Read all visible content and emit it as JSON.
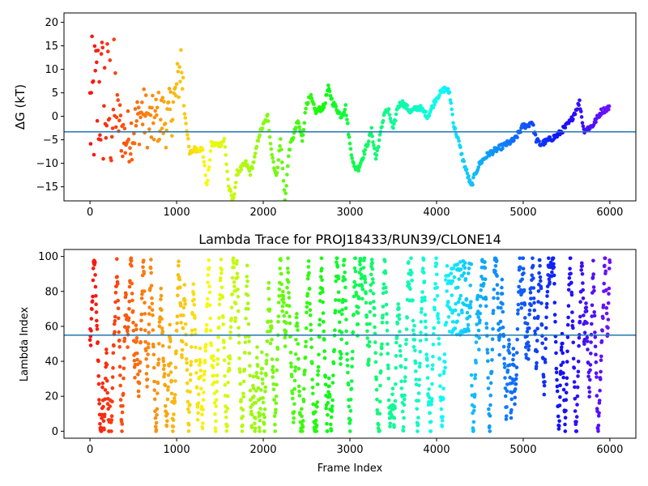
{
  "chart_data": [
    {
      "type": "scatter",
      "title": "",
      "xlabel": "",
      "ylabel": "ΔG (kT)",
      "xlim": [
        -300,
        6300
      ],
      "ylim": [
        -18,
        22
      ],
      "xticks": [
        0,
        1000,
        2000,
        3000,
        4000,
        5000,
        6000
      ],
      "yticks": [
        -15,
        -10,
        -5,
        0,
        5,
        10,
        15,
        20
      ],
      "hline": -3.3,
      "hline_color": "#1f77b4",
      "colormap": "rainbow (red at frame 0 to violet at frame 6000)",
      "series": [
        {
          "x": [
            0,
            100,
            200,
            300,
            400,
            500,
            600,
            700,
            800,
            900,
            1000,
            1050,
            1100,
            1150,
            1200,
            1300,
            1350,
            1400,
            1500,
            1550,
            1600,
            1650,
            1700,
            1800,
            1850,
            1900,
            1950,
            2000,
            2050,
            2100,
            2150,
            2200,
            2250,
            2300,
            2400,
            2450,
            2500,
            2550,
            2600,
            2700,
            2750,
            2800,
            2900,
            2950,
            3000,
            3050,
            3100,
            3200,
            3250,
            3300,
            3400,
            3450,
            3500,
            3550,
            3600,
            3700,
            3800,
            3900,
            4000,
            4050,
            4100,
            4150,
            4200,
            4250,
            4300,
            4400,
            4450,
            4500,
            4600,
            4700,
            4800,
            4900,
            5000,
            5050,
            5100,
            5150,
            5200,
            5300,
            5400,
            5500,
            5550,
            5600,
            5650,
            5700,
            5800,
            5900,
            6000
          ],
          "y": [
            0,
            5,
            2,
            1,
            -5,
            -3,
            1,
            -2,
            0,
            -1,
            5,
            12,
            0,
            -8,
            -7,
            -7,
            -15,
            -6,
            -6,
            -5,
            -15,
            -18,
            -12,
            -10,
            -12,
            -9,
            -4,
            -2,
            0,
            -8,
            -13,
            -5,
            -18,
            -7,
            -1,
            -5,
            3,
            4,
            1,
            2,
            6,
            3,
            0,
            2,
            -6,
            -11,
            -11,
            -6,
            -3,
            -9,
            1,
            1,
            -3,
            2,
            3,
            1,
            2,
            0,
            4,
            5,
            6,
            5,
            -2,
            -5,
            -9,
            -15,
            -12,
            -10,
            -8,
            -7,
            -6,
            -5,
            -2,
            -2,
            -1,
            -5,
            -6,
            -5,
            -4,
            -2,
            -1,
            1,
            3,
            -3,
            -2,
            1,
            2
          ]
        }
      ]
    },
    {
      "type": "scatter",
      "title": "Lambda Trace for PROJ18433/RUN39/CLONE14",
      "xlabel": "Frame Index",
      "ylabel": "Lambda Index",
      "xlim": [
        -300,
        6300
      ],
      "ylim": [
        -4,
        104
      ],
      "xticks": [
        0,
        1000,
        2000,
        3000,
        4000,
        5000,
        6000
      ],
      "yticks": [
        0,
        20,
        40,
        60,
        80,
        100
      ],
      "hline": 55,
      "hline_color": "#1f77b4",
      "colormap": "rainbow (red at frame 0 to violet at frame 6000)",
      "value_range": [
        0,
        99
      ],
      "dense_band": {
        "x": [
          4100,
          4400
        ],
        "y": [
          55,
          99
        ]
      }
    }
  ]
}
